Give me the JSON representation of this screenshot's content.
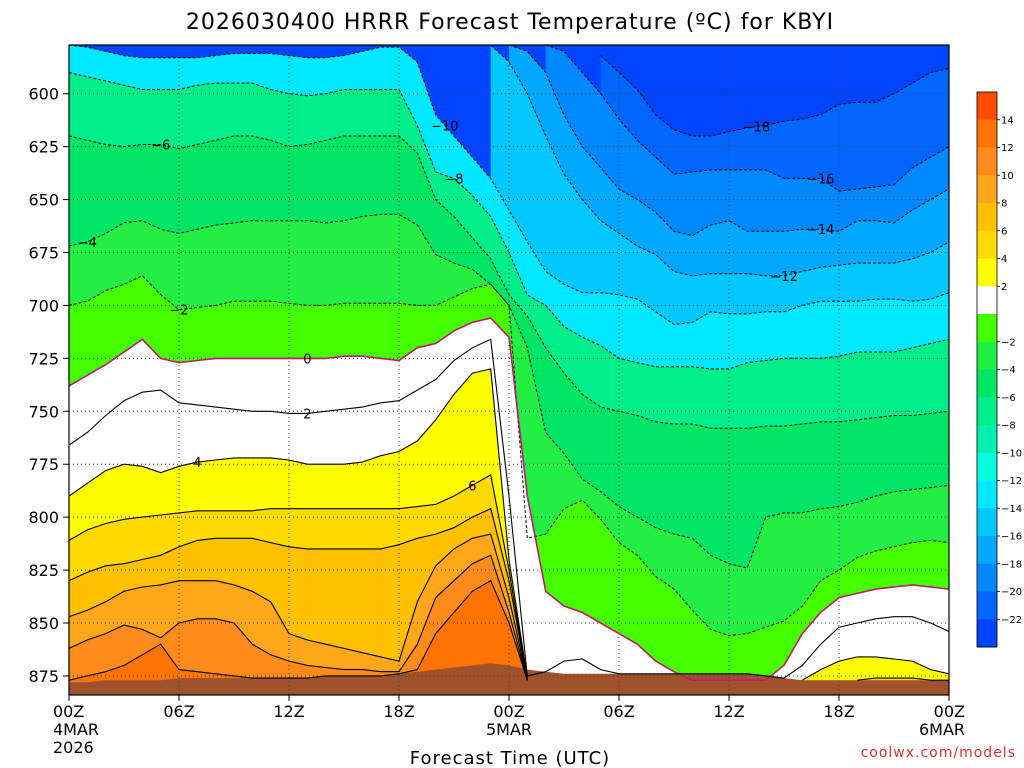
{
  "chart_data": {
    "type": "heatmap",
    "title": "2026030400 HRRR Forecast Temperature (ºC) for KBYI",
    "xlabel": "Forecast Time (UTC)",
    "ylabel": "",
    "credit": "coolwx.com/models",
    "x_ticks": [
      {
        "hour": 0,
        "l1": "00Z",
        "l2": "4MAR",
        "l3": "2026"
      },
      {
        "hour": 6,
        "l1": "06Z",
        "l2": "",
        "l3": ""
      },
      {
        "hour": 12,
        "l1": "12Z",
        "l2": "",
        "l3": ""
      },
      {
        "hour": 18,
        "l1": "18Z",
        "l2": "",
        "l3": ""
      },
      {
        "hour": 24,
        "l1": "00Z",
        "l2": "5MAR",
        "l3": ""
      },
      {
        "hour": 30,
        "l1": "06Z",
        "l2": "",
        "l3": ""
      },
      {
        "hour": 36,
        "l1": "12Z",
        "l2": "",
        "l3": ""
      },
      {
        "hour": 42,
        "l1": "18Z",
        "l2": "",
        "l3": ""
      },
      {
        "hour": 48,
        "l1": "00Z",
        "l2": "6MAR",
        "l3": ""
      }
    ],
    "xlim": [
      0,
      48
    ],
    "y_ticks": [
      "600",
      "625",
      "650",
      "675",
      "700",
      "725",
      "750",
      "775",
      "800",
      "825",
      "850",
      "875"
    ],
    "y_tick_values": [
      600,
      625,
      650,
      675,
      700,
      725,
      750,
      775,
      800,
      825,
      850,
      875
    ],
    "ylim": [
      577,
      884
    ],
    "colorbar": {
      "labels": [
        "14",
        "12",
        "10",
        "8",
        "6",
        "4",
        "2",
        "−2",
        "−4",
        "−6",
        "−8",
        "−10",
        "−12",
        "−14",
        "−16",
        "−18",
        "−20",
        "−22"
      ],
      "colors": [
        "#ff4d00",
        "#ff7300",
        "#ff8c1a",
        "#ffa61a",
        "#ffc000",
        "#ffda00",
        "#ffff00",
        "#ffffff",
        "#44ff00",
        "#22ee44",
        "#00e664",
        "#00ee8a",
        "#00f0b0",
        "#00ffdd",
        "#00e8ff",
        "#00c8ff",
        "#00a8ff",
        "#0088ff",
        "#0066ff",
        "#0044ff"
      ]
    },
    "surface_pressure_hpa": [
      878,
      878,
      877,
      877,
      877,
      877,
      876,
      876,
      876,
      876,
      876,
      876,
      876,
      876,
      875,
      875,
      875,
      875,
      874,
      873,
      872,
      871,
      870,
      869,
      870,
      872,
      873,
      874,
      874,
      874,
      874,
      874,
      874,
      874,
      874,
      874,
      874,
      874,
      875,
      876,
      877,
      877,
      877,
      877,
      877,
      877,
      877,
      877,
      877
    ],
    "series": [
      {
        "name": "-18",
        "label": "−18",
        "label_hour": 37.5,
        "values": [
          null,
          null,
          null,
          null,
          null,
          null,
          null,
          null,
          null,
          null,
          null,
          null,
          null,
          null,
          null,
          null,
          null,
          null,
          null,
          null,
          null,
          null,
          null,
          null,
          null,
          null,
          null,
          null,
          null,
          582,
          590,
          598,
          610,
          617,
          620,
          620,
          618,
          616,
          615,
          613,
          612,
          610,
          605,
          604,
          604,
          600,
          595,
          590,
          588
        ]
      },
      {
        "name": "-16",
        "label": "−16",
        "label_hour": 41,
        "values": [
          null,
          null,
          null,
          null,
          null,
          null,
          null,
          null,
          null,
          null,
          null,
          null,
          null,
          null,
          null,
          null,
          null,
          null,
          null,
          null,
          null,
          null,
          null,
          null,
          null,
          null,
          577,
          580,
          590,
          600,
          612,
          622,
          630,
          638,
          637,
          636,
          636,
          636,
          636,
          640,
          640,
          640,
          646,
          645,
          644,
          643,
          635,
          630,
          625
        ]
      },
      {
        "name": "-14",
        "label": "−14",
        "label_hour": 41,
        "values": [
          null,
          null,
          null,
          null,
          null,
          null,
          null,
          null,
          null,
          null,
          null,
          null,
          null,
          null,
          null,
          null,
          null,
          null,
          null,
          null,
          null,
          null,
          null,
          null,
          577,
          580,
          590,
          610,
          625,
          635,
          645,
          650,
          656,
          665,
          667,
          662,
          660,
          665,
          665,
          665,
          664,
          664,
          665,
          660,
          660,
          661,
          655,
          650,
          645
        ]
      },
      {
        "name": "-12",
        "label": "−12",
        "label_hour": 39,
        "values": [
          null,
          null,
          null,
          null,
          null,
          null,
          null,
          null,
          null,
          null,
          null,
          null,
          null,
          null,
          null,
          null,
          null,
          null,
          null,
          null,
          null,
          null,
          null,
          577,
          585,
          600,
          620,
          638,
          650,
          660,
          666,
          672,
          676,
          684,
          686,
          685,
          685,
          685,
          686,
          686,
          684,
          682,
          681,
          680,
          680,
          680,
          678,
          675,
          670
        ]
      },
      {
        "name": "-10",
        "label": "−10",
        "label_hour": 20.5,
        "values": [
          577,
          578,
          580,
          582,
          583,
          583,
          583,
          583,
          582,
          581,
          581,
          581,
          582,
          583,
          583,
          582,
          580,
          578,
          578,
          585,
          610,
          620,
          630,
          640,
          655,
          670,
          684,
          690,
          694,
          694,
          695,
          697,
          703,
          709,
          708,
          703,
          704,
          704,
          703,
          703,
          700,
          698,
          698,
          698,
          697,
          697,
          698,
          697,
          694
        ]
      },
      {
        "name": "-8",
        "label": "−8",
        "label_hour": 21,
        "values": [
          590,
          592,
          594,
          596,
          598,
          598,
          598,
          596,
          595,
          595,
          595,
          598,
          600,
          601,
          600,
          598,
          598,
          598,
          598,
          615,
          637,
          640,
          648,
          658,
          675,
          695,
          700,
          710,
          715,
          719,
          725,
          727,
          729,
          729,
          729,
          730,
          730,
          727,
          726,
          725,
          725,
          725,
          724,
          722,
          722,
          722,
          720,
          718,
          716
        ]
      },
      {
        "name": "-6",
        "label": "−6",
        "label_hour": 5,
        "values": [
          620,
          622,
          624,
          625,
          624,
          624,
          626,
          624,
          622,
          620,
          620,
          622,
          625,
          624,
          622,
          620,
          620,
          620,
          620,
          628,
          650,
          658,
          668,
          678,
          695,
          705,
          720,
          732,
          742,
          748,
          750,
          752,
          755,
          756,
          756,
          758,
          758,
          758,
          757,
          757,
          756,
          755,
          755,
          754,
          753,
          752,
          752,
          751,
          750
        ]
      },
      {
        "name": "-4",
        "label": "−4",
        "label_hour": 1,
        "values": [
          672,
          670,
          666,
          661,
          660,
          664,
          666,
          664,
          662,
          661,
          660,
          660,
          660,
          660,
          661,
          660,
          658,
          657,
          657,
          662,
          676,
          680,
          683,
          690,
          700,
          720,
          760,
          770,
          782,
          788,
          795,
          800,
          805,
          808,
          810,
          818,
          822,
          824,
          800,
          798,
          798,
          796,
          795,
          793,
          790,
          788,
          787,
          786,
          785
        ]
      },
      {
        "name": "-2",
        "label": "−2",
        "label_hour": 6,
        "values": [
          700,
          698,
          693,
          690,
          686,
          695,
          702,
          701,
          700,
          698,
          698,
          698,
          699,
          700,
          700,
          699,
          699,
          699,
          699,
          700,
          700,
          696,
          692,
          690,
          700,
          810,
          808,
          796,
          792,
          801,
          812,
          818,
          828,
          834,
          844,
          853,
          856,
          855,
          852,
          849,
          842,
          830,
          825,
          819,
          816,
          814,
          812,
          811,
          812
        ]
      },
      {
        "name": "0",
        "label": "0",
        "label_hour": 13,
        "values": [
          738,
          733,
          728,
          722,
          716,
          725,
          727,
          726,
          725,
          725,
          725,
          725,
          725,
          725,
          725,
          724,
          724,
          725,
          726,
          720,
          718,
          712,
          708,
          706,
          715,
          790,
          835,
          842,
          845,
          850,
          855,
          860,
          868,
          873,
          877,
          877,
          877,
          877,
          877,
          870,
          855,
          845,
          838,
          836,
          834,
          833,
          832,
          833,
          834
        ]
      },
      {
        "name": "2",
        "label": "2",
        "label_hour": 13,
        "values": [
          766,
          760,
          752,
          745,
          741,
          740,
          746,
          747,
          748,
          749,
          750,
          750,
          751,
          751,
          750,
          749,
          748,
          746,
          745,
          740,
          735,
          726,
          720,
          716,
          790,
          875,
          873,
          868,
          867,
          872,
          874,
          874,
          874,
          874,
          874,
          874,
          874,
          874,
          875,
          876,
          870,
          860,
          852,
          850,
          848,
          847,
          847,
          850,
          854
        ]
      },
      {
        "name": "4",
        "label": "4",
        "label_hour": 7,
        "values": [
          790,
          784,
          778,
          775,
          776,
          779,
          776,
          774,
          773,
          772,
          772,
          772,
          773,
          775,
          775,
          775,
          774,
          771,
          769,
          764,
          754,
          742,
          732,
          730,
          820,
          876,
          null,
          null,
          null,
          null,
          null,
          null,
          null,
          null,
          null,
          null,
          null,
          null,
          null,
          null,
          877,
          872,
          868,
          866,
          866,
          867,
          868,
          872,
          874
        ]
      },
      {
        "name": "6",
        "label": "6",
        "label_hour": 22,
        "values": [
          811,
          806,
          803,
          801,
          800,
          799,
          798,
          797,
          797,
          797,
          797,
          796,
          796,
          796,
          796,
          796,
          796,
          796,
          796,
          795,
          794,
          790,
          785,
          780,
          825,
          877,
          null,
          null,
          null,
          null,
          null,
          null,
          null,
          null,
          null,
          null,
          null,
          null,
          null,
          null,
          null,
          null,
          null,
          877,
          876,
          876,
          876,
          877,
          877
        ]
      },
      {
        "name": "8",
        "label": "",
        "label_hour": 0,
        "values": [
          830,
          826,
          823,
          822,
          820,
          818,
          814,
          811,
          810,
          810,
          810,
          812,
          814,
          815,
          815,
          815,
          815,
          815,
          813,
          810,
          808,
          805,
          800,
          796,
          830,
          877
        ]
      },
      {
        "name": "10",
        "label": "",
        "label_hour": 0,
        "values": [
          847,
          844,
          840,
          835,
          833,
          832,
          830,
          830,
          830,
          832,
          835,
          840,
          855,
          858,
          860,
          862,
          864,
          866,
          868,
          840,
          823,
          815,
          810,
          808,
          838,
          877
        ]
      },
      {
        "name": "12",
        "label": "",
        "label_hour": 0,
        "values": [
          862,
          858,
          855,
          851,
          853,
          857,
          850,
          848,
          848,
          850,
          860,
          865,
          868,
          870,
          871,
          872,
          872,
          873,
          873,
          860,
          838,
          830,
          822,
          818,
          845,
          877
        ]
      },
      {
        "name": "14",
        "label": "",
        "label_hour": 0,
        "values": [
          877,
          875,
          873,
          870,
          865,
          860,
          872,
          873,
          874,
          875,
          876,
          876,
          876,
          876,
          875,
          875,
          875,
          875,
          874,
          872,
          855,
          845,
          835,
          830,
          850,
          877
        ]
      }
    ]
  }
}
